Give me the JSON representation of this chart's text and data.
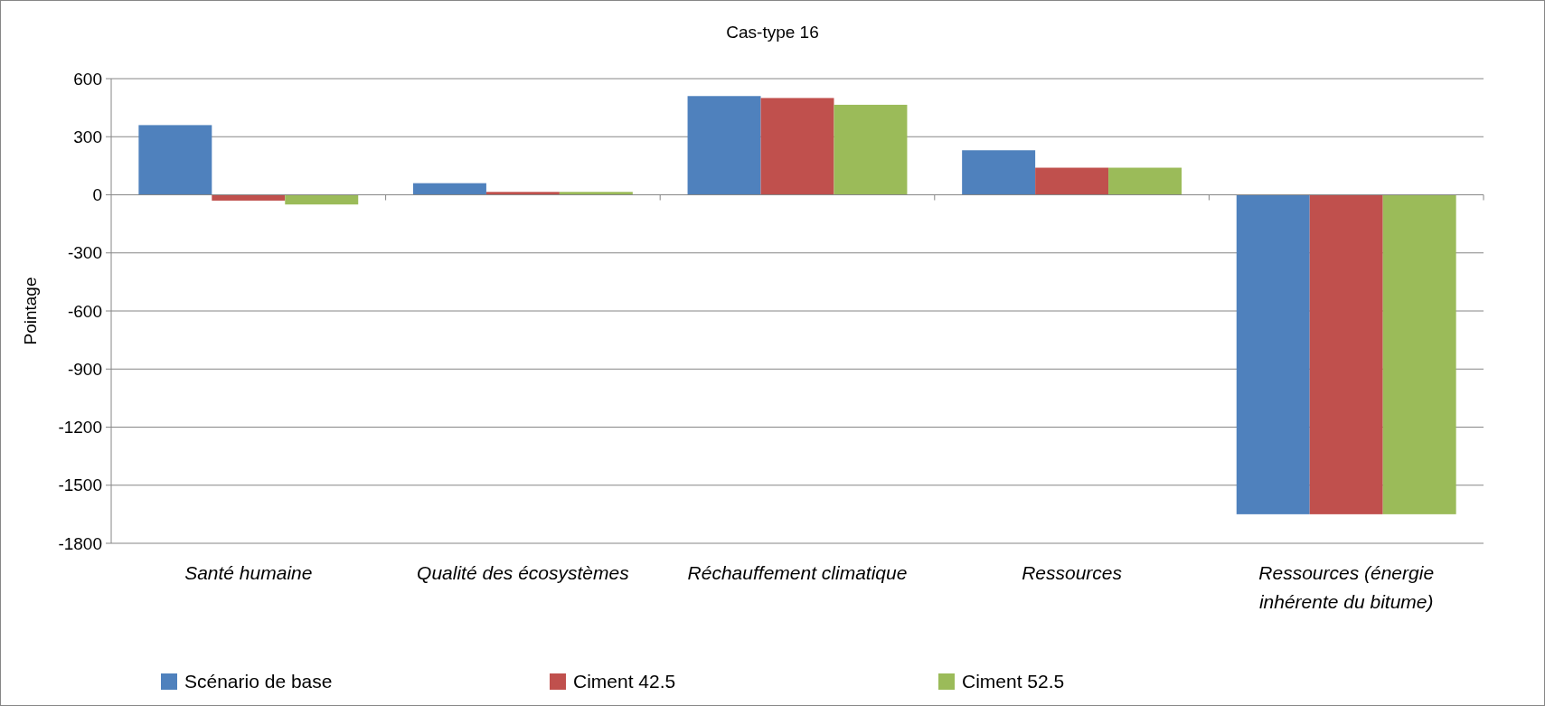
{
  "chart_data": {
    "type": "bar",
    "title": "Cas-type 16",
    "ylabel": "Pointage",
    "categories": [
      "Santé humaine",
      "Qualité des écosystèmes",
      "Réchauffement climatique",
      "Ressources",
      "Ressources  (énergie inhérente du bitume)"
    ],
    "series": [
      {
        "name": "Scénario de base",
        "color": "#4f81bd",
        "values": [
          360,
          60,
          510,
          230,
          -1650
        ]
      },
      {
        "name": "Ciment 42.5",
        "color": "#c0504d",
        "values": [
          -30,
          15,
          500,
          140,
          -1650
        ]
      },
      {
        "name": "Ciment 52.5",
        "color": "#9bbb59",
        "values": [
          -50,
          15,
          465,
          140,
          -1650
        ]
      }
    ],
    "ylim": [
      -1800,
      600
    ],
    "yticks": [
      -1800,
      -1500,
      -1200,
      -900,
      -600,
      -300,
      0,
      300,
      600
    ],
    "grid": "y",
    "legend": "bottom"
  }
}
